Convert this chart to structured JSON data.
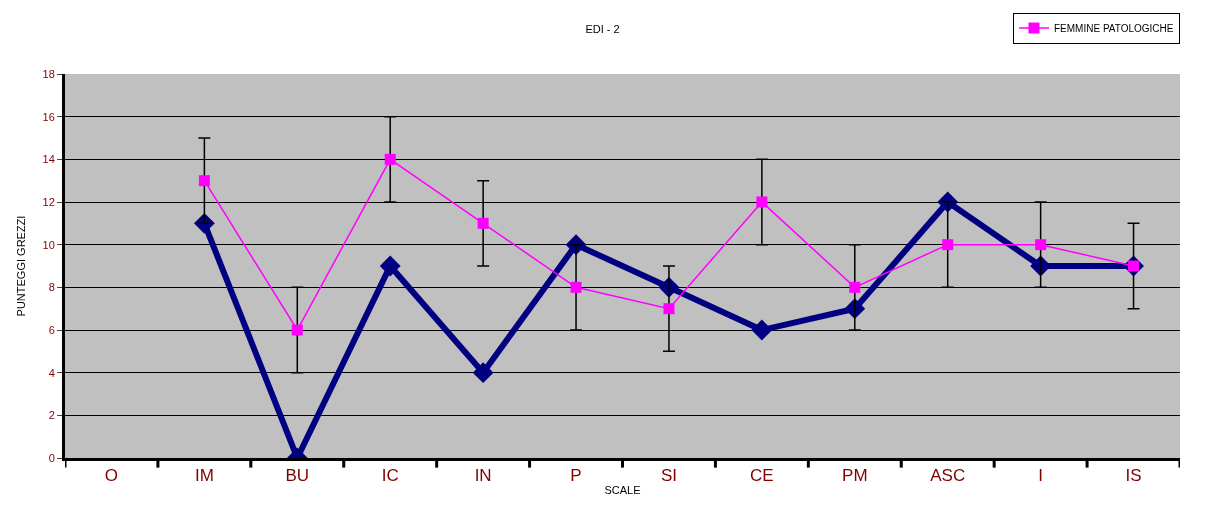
{
  "chart_data": {
    "type": "line",
    "title": "EDI - 2",
    "xlabel": "SCALE",
    "ylabel": "PUNTEGGI GREZZI",
    "categories": [
      "O",
      "IM",
      "BU",
      "IC",
      "IN",
      "P",
      "SI",
      "CE",
      "PM",
      "ASC",
      "I",
      "IS"
    ],
    "series": [
      {
        "color": "#000080",
        "marker": "diamond",
        "values": [
          null,
          11,
          0,
          9,
          4,
          10,
          8,
          6,
          7,
          12,
          9,
          9
        ]
      },
      {
        "name": "FEMMINE PATOLOGICHE",
        "color": "#ff00ff",
        "marker": "square",
        "values": [
          null,
          13,
          6,
          14,
          11,
          8,
          7,
          12,
          8,
          10,
          10,
          9
        ],
        "errors": [
          null,
          2,
          2,
          2,
          2,
          2,
          2,
          2,
          2,
          2,
          2,
          2
        ]
      }
    ],
    "ylim": [
      0,
      18
    ],
    "yticks": [
      0,
      2,
      4,
      6,
      8,
      10,
      12,
      14,
      16,
      18
    ],
    "grid": "y",
    "legend": "top right"
  }
}
